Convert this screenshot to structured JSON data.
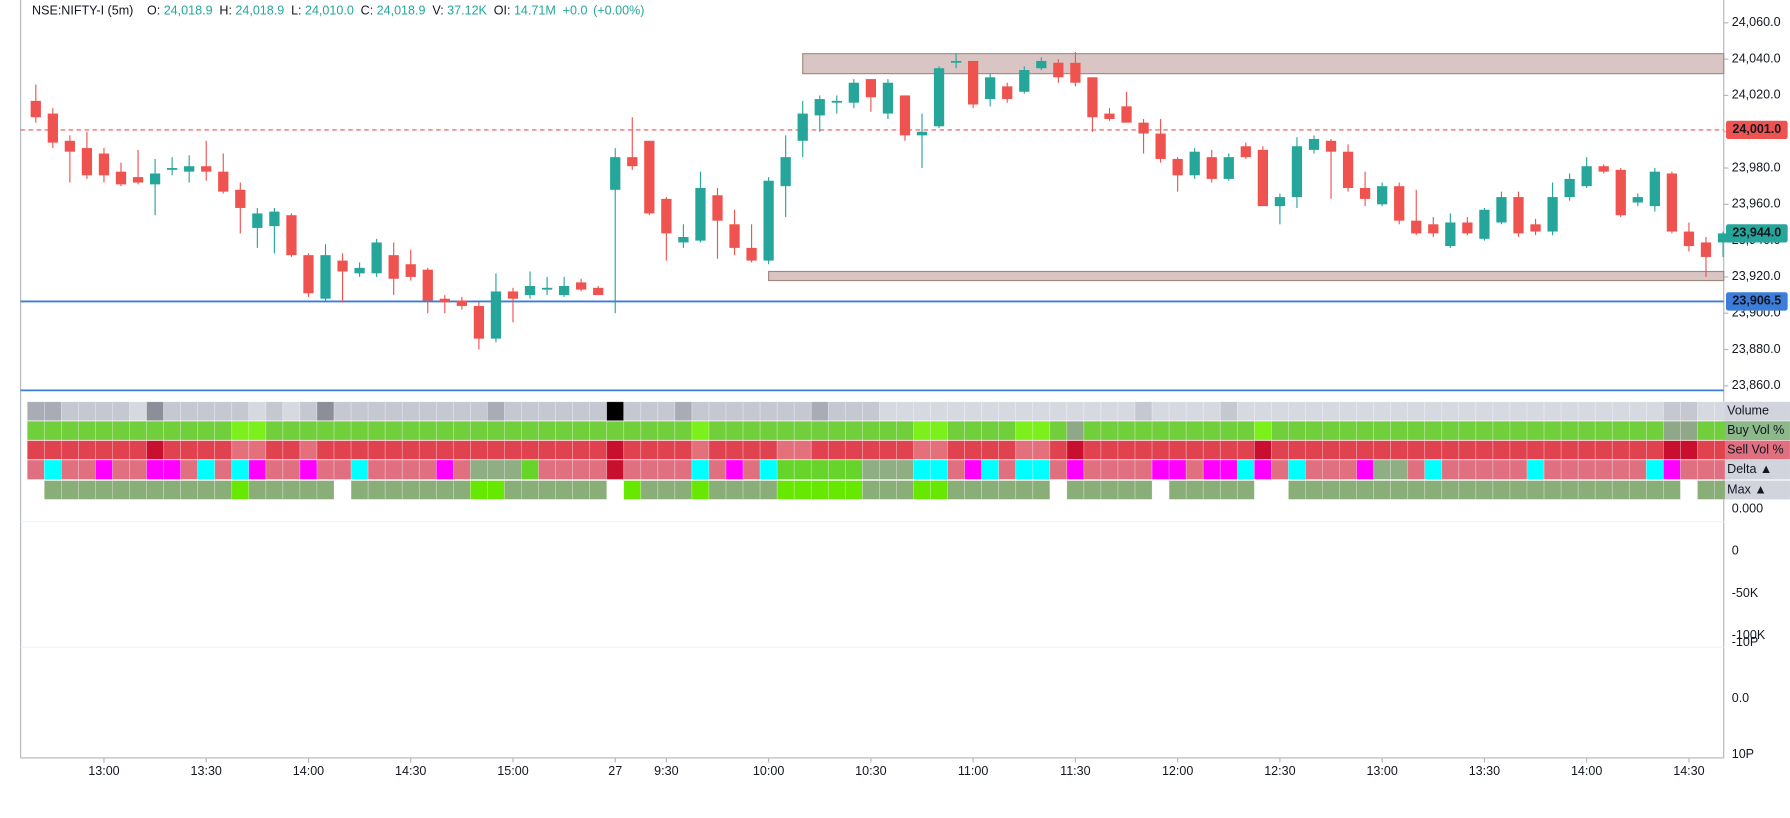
{
  "chart_data": {
    "type": "candlestick",
    "symbol": "NSE:NIFTY-I (5m)",
    "legend_items": [
      {
        "label": "O:",
        "value": "24,018.9"
      },
      {
        "label": "H:",
        "value": "24,018.9"
      },
      {
        "label": "L:",
        "value": "24,010.0"
      },
      {
        "label": "C:",
        "value": "24,018.9"
      },
      {
        "label": "V:",
        "value": "37.12K"
      },
      {
        "label": "OI:",
        "value": "14.71M"
      }
    ],
    "change": "+0.0",
    "change_percent": "(+0.00%)",
    "up_color": "#26a69a",
    "down_color": "#ef5350",
    "ylim": [
      23860,
      24060
    ],
    "yticks": [
      {
        "value": 24060,
        "label": "24,060.0"
      },
      {
        "value": 24040,
        "label": "24,040.0"
      },
      {
        "value": 24020,
        "label": "24,020.0"
      },
      {
        "value": 24000,
        "label": "24,000.0"
      },
      {
        "value": 23980,
        "label": "23,980.0"
      },
      {
        "value": 23960,
        "label": "23,960.0"
      },
      {
        "value": 23940,
        "label": "23,940.0"
      },
      {
        "value": 23920,
        "label": "23,920.0"
      },
      {
        "value": 23900,
        "label": "23,900.0"
      },
      {
        "value": 23880,
        "label": "23,880.0"
      },
      {
        "value": 23860,
        "label": "23,860.0"
      }
    ],
    "xticks": [
      {
        "value": 4,
        "label": "13:00"
      },
      {
        "value": 10,
        "label": "13:30"
      },
      {
        "value": 16,
        "label": "14:00"
      },
      {
        "value": 22,
        "label": "14:30"
      },
      {
        "value": 28,
        "label": "15:00"
      },
      {
        "value": 34,
        "label": "27"
      },
      {
        "value": 37,
        "label": "9:30"
      },
      {
        "value": 43,
        "label": "10:00"
      },
      {
        "value": 49,
        "label": "10:30"
      },
      {
        "value": 55,
        "label": "11:00"
      },
      {
        "value": 61,
        "label": "11:30"
      },
      {
        "value": 67,
        "label": "12:00"
      },
      {
        "value": 73,
        "label": "12:30"
      },
      {
        "value": 79,
        "label": "13:00"
      },
      {
        "value": 85,
        "label": "13:30"
      },
      {
        "value": 91,
        "label": "14:00"
      },
      {
        "value": 97,
        "label": "14:30"
      }
    ],
    "open": [
      24017,
      24010,
      23995,
      23991,
      23988,
      23978,
      23975,
      23971,
      23979,
      23978,
      23981,
      23978,
      23968,
      23947,
      23948,
      23954,
      23932,
      23908,
      23929,
      23922,
      23922,
      23932,
      23927,
      23924,
      23908,
      23907,
      23904,
      23886,
      23912,
      23910,
      23913,
      23910,
      23917,
      23914,
      23968,
      23986,
      23995,
      23963,
      23939,
      23940,
      23965,
      23949,
      23936,
      23929,
      23970,
      23995,
      24009,
      24016,
      24016,
      24029,
      24010,
      24020,
      23998,
      24003,
      24038,
      24039,
      24018,
      24025,
      24022,
      24035,
      24038,
      24038,
      24030,
      24010,
      24014,
      24005,
      23999,
      23985,
      23976,
      23986,
      23974,
      23992,
      23990,
      23959,
      23964,
      23990,
      23995,
      23989,
      23969,
      23960,
      23970,
      23951,
      23949,
      23937,
      23950,
      23941,
      23950,
      23964,
      23949,
      23945,
      23964,
      23970,
      23981,
      23979,
      23961,
      23959,
      23977,
      23945,
      23939,
      23939
    ],
    "high": [
      24026,
      24013,
      23998,
      24000,
      23991,
      23983,
      23990,
      23985,
      23986,
      23987,
      23995,
      23988,
      23972,
      23958,
      23958,
      23955,
      23933,
      23938,
      23933,
      23928,
      23941,
      23939,
      23935,
      23925,
      23910,
      23909,
      23906,
      23922,
      23914,
      23923,
      23920,
      23920,
      23919,
      23915,
      23991,
      24008,
      23995,
      23964,
      23949,
      23978,
      23969,
      23957,
      23949,
      23975,
      23998,
      24017,
      24020,
      24020,
      24029,
      24029,
      24029,
      24020,
      24010,
      24036,
      24043,
      24039,
      24032,
      24027,
      24036,
      24041,
      24040,
      24044,
      24030,
      24013,
      24022,
      24007,
      24007,
      23986,
      23991,
      23990,
      23988,
      23994,
      23992,
      23966,
      23997,
      23998,
      23996,
      23993,
      23978,
      23972,
      23972,
      23968,
      23953,
      23955,
      23953,
      23958,
      23967,
      23967,
      23952,
      23972,
      23977,
      23986,
      23982,
      23980,
      23966,
      23980,
      23978,
      23950,
      23942,
      23945
    ],
    "low": [
      24005,
      23991,
      23972,
      23974,
      23972,
      23970,
      23971,
      23954,
      23976,
      23972,
      23973,
      23966,
      23944,
      23936,
      23933,
      23931,
      23909,
      23907,
      23906,
      23920,
      23920,
      23910,
      23918,
      23900,
      23900,
      23902,
      23880,
      23884,
      23895,
      23908,
      23910,
      23909,
      23912,
      23910,
      23900,
      23979,
      23954,
      23929,
      23936,
      23939,
      23930,
      23932,
      23928,
      23927,
      23953,
      23986,
      24000,
      24010,
      24013,
      24011,
      24007,
      23995,
      23980,
      24002,
      24035,
      24013,
      24014,
      24016,
      24021,
      24034,
      24027,
      24025,
      24000,
      24006,
      24005,
      23988,
      23983,
      23967,
      23974,
      23972,
      23973,
      23985,
      23959,
      23949,
      23958,
      23988,
      23963,
      23967,
      23959,
      23959,
      23949,
      23943,
      23942,
      23936,
      23943,
      23940,
      23949,
      23942,
      23943,
      23943,
      23962,
      23969,
      23977,
      23953,
      23959,
      23956,
      23944,
      23934,
      23920,
      23931
    ],
    "close": [
      24008,
      23994,
      23989,
      23976,
      23976,
      23971,
      23972,
      23977,
      23980,
      23981,
      23978,
      23967,
      23958,
      23955,
      23956,
      23932,
      23911,
      23932,
      23923,
      23925,
      23939,
      23919,
      23920,
      23907,
      23906,
      23904,
      23886,
      23912,
      23908,
      23915,
      23914,
      23915,
      23913,
      23910,
      23986,
      23981,
      23955,
      23944,
      23942,
      23969,
      23951,
      23936,
      23929,
      23973,
      23986,
      24010,
      24018,
      24017,
      24027,
      24019,
      24027,
      23998,
      24000,
      24035,
      24039,
      24015,
      24030,
      24018,
      24034,
      24039,
      24030,
      24027,
      24008,
      24007,
      24005,
      23999,
      23985,
      23976,
      23989,
      23974,
      23986,
      23986,
      23959,
      23964,
      23992,
      23996,
      23989,
      23969,
      23963,
      23970,
      23951,
      23944,
      23944,
      23950,
      23944,
      23957,
      23964,
      23944,
      23945,
      23964,
      23974,
      23981,
      23978,
      23954,
      23964,
      23978,
      23945,
      23937,
      23931,
      23944
    ],
    "zones": [
      {
        "from": 45,
        "top": 24043,
        "bottom": 24032,
        "fill": "#d9c6c4",
        "stroke": "#a1887f"
      },
      {
        "from": 43,
        "top": 23923,
        "bottom": 23918,
        "fill": "#d9c6c4",
        "stroke": "#a1887f"
      }
    ],
    "levels": [
      {
        "value": 24001.0,
        "label": "24,001.0",
        "color": "#ef5350",
        "dashed": true
      },
      {
        "value": 23906.5,
        "label": "23,906.5",
        "color": "#3b7dd8",
        "dashed": false
      }
    ],
    "last_price": {
      "value": 23944.0,
      "label": "23,944.0",
      "color": "#26a69a"
    },
    "indicator_axis_labels": [
      "0.000",
      "0",
      "-50K",
      "-100K",
      "-10P",
      "0.0",
      "10P"
    ],
    "heatmap": [
      {
        "name": "Volume",
        "label_bg": "#d1d4dc",
        "colors": [
          "#a9acb5",
          "#a9acb5",
          "#c5c8d0",
          "#c5c8d0",
          "#c5c8d0",
          "#c5c8d0",
          "#d6d9e0",
          "#8c8f98",
          "#c5c8d0",
          "#c5c8d0",
          "#c5c8d0",
          "#c5c8d0",
          "#c5c8d0",
          "#d6d9e0",
          "#c5c8d0",
          "#d6d9e0",
          "#c5c8d0",
          "#8c8f98",
          "#c5c8d0",
          "#c5c8d0",
          "#c5c8d0",
          "#c5c8d0",
          "#c5c8d0",
          "#c5c8d0",
          "#c5c8d0",
          "#c5c8d0",
          "#c5c8d0",
          "#a9acb5",
          "#c5c8d0",
          "#c5c8d0",
          "#c5c8d0",
          "#c5c8d0",
          "#c5c8d0",
          "#c5c8d0",
          "#000000",
          "#c5c8d0",
          "#c5c8d0",
          "#c5c8d0",
          "#a9acb5",
          "#c5c8d0",
          "#c5c8d0",
          "#c5c8d0",
          "#c5c8d0",
          "#c5c8d0",
          "#c5c8d0",
          "#c5c8d0",
          "#a9acb5",
          "#c5c8d0",
          "#c5c8d0",
          "#c5c8d0",
          "#d6d9e0",
          "#d6d9e0",
          "#d6d9e0",
          "#d6d9e0",
          "#d6d9e0",
          "#d6d9e0",
          "#d6d9e0",
          "#d6d9e0",
          "#d6d9e0",
          "#d6d9e0",
          "#d6d9e0",
          "#d6d9e0",
          "#d6d9e0",
          "#d6d9e0",
          "#d6d9e0",
          "#c5c8d0",
          "#d6d9e0",
          "#d6d9e0",
          "#d6d9e0",
          "#d6d9e0",
          "#c5c8d0",
          "#d6d9e0",
          "#d6d9e0",
          "#d6d9e0",
          "#d6d9e0",
          "#d6d9e0",
          "#d6d9e0",
          "#d6d9e0",
          "#d6d9e0",
          "#d6d9e0",
          "#d6d9e0",
          "#d6d9e0",
          "#d6d9e0",
          "#d6d9e0",
          "#d6d9e0",
          "#d6d9e0",
          "#d6d9e0",
          "#d6d9e0",
          "#d6d9e0",
          "#d6d9e0",
          "#d6d9e0",
          "#d6d9e0",
          "#d6d9e0",
          "#d6d9e0",
          "#d6d9e0",
          "#d6d9e0",
          "#c5c8d0",
          "#c5c8d0",
          "#d6d9e0",
          "#d6d9e0"
        ]
      },
      {
        "name": "Buy Vol %",
        "label_bg": "#8db88a",
        "colors": [
          "#72cf3c",
          "#72cf3c",
          "#72cf3c",
          "#72cf3c",
          "#72cf3c",
          "#72cf3c",
          "#72cf3c",
          "#72cf3c",
          "#72cf3c",
          "#72cf3c",
          "#72cf3c",
          "#72cf3c",
          "#7cf01a",
          "#7cf01a",
          "#72cf3c",
          "#72cf3c",
          "#72cf3c",
          "#72cf3c",
          "#72cf3c",
          "#72cf3c",
          "#72cf3c",
          "#72cf3c",
          "#72cf3c",
          "#72cf3c",
          "#72cf3c",
          "#72cf3c",
          "#72cf3c",
          "#72cf3c",
          "#72cf3c",
          "#72cf3c",
          "#72cf3c",
          "#72cf3c",
          "#72cf3c",
          "#72cf3c",
          "#72cf3c",
          "#72cf3c",
          "#72cf3c",
          "#72cf3c",
          "#72cf3c",
          "#7cf01a",
          "#72cf3c",
          "#72cf3c",
          "#72cf3c",
          "#72cf3c",
          "#72cf3c",
          "#72cf3c",
          "#72cf3c",
          "#72cf3c",
          "#72cf3c",
          "#72cf3c",
          "#72cf3c",
          "#72cf3c",
          "#7cf01a",
          "#7cf01a",
          "#72cf3c",
          "#72cf3c",
          "#72cf3c",
          "#72cf3c",
          "#7cf01a",
          "#7cf01a",
          "#72cf3c",
          "#8fa888",
          "#72cf3c",
          "#72cf3c",
          "#72cf3c",
          "#72cf3c",
          "#72cf3c",
          "#72cf3c",
          "#72cf3c",
          "#72cf3c",
          "#72cf3c",
          "#72cf3c",
          "#7cf01a",
          "#72cf3c",
          "#72cf3c",
          "#72cf3c",
          "#72cf3c",
          "#72cf3c",
          "#72cf3c",
          "#72cf3c",
          "#72cf3c",
          "#72cf3c",
          "#72cf3c",
          "#72cf3c",
          "#72cf3c",
          "#72cf3c",
          "#72cf3c",
          "#72cf3c",
          "#72cf3c",
          "#72cf3c",
          "#72cf3c",
          "#72cf3c",
          "#72cf3c",
          "#72cf3c",
          "#72cf3c",
          "#72cf3c",
          "#8fa888",
          "#8fa888",
          "#72cf3c",
          "#72cf3c"
        ]
      },
      {
        "name": "Sell Vol %",
        "label_bg": "#e07080",
        "colors": [
          "#e0424f",
          "#e0424f",
          "#e0424f",
          "#e0424f",
          "#e0424f",
          "#e0424f",
          "#e0424f",
          "#c8102e",
          "#e0424f",
          "#e0424f",
          "#e0424f",
          "#e0424f",
          "#e4707c",
          "#e4707c",
          "#e0424f",
          "#e0424f",
          "#e4707c",
          "#e0424f",
          "#e0424f",
          "#e0424f",
          "#e0424f",
          "#e0424f",
          "#e0424f",
          "#e0424f",
          "#e0424f",
          "#e0424f",
          "#e0424f",
          "#e0424f",
          "#e0424f",
          "#e0424f",
          "#e0424f",
          "#e0424f",
          "#e0424f",
          "#e0424f",
          "#c8102e",
          "#e0424f",
          "#e0424f",
          "#e0424f",
          "#e0424f",
          "#e4707c",
          "#e0424f",
          "#e0424f",
          "#e0424f",
          "#e0424f",
          "#e4707c",
          "#e4707c",
          "#e0424f",
          "#e0424f",
          "#e0424f",
          "#e0424f",
          "#e0424f",
          "#e0424f",
          "#e4707c",
          "#e4707c",
          "#e0424f",
          "#e0424f",
          "#e0424f",
          "#e0424f",
          "#e4707c",
          "#e4707c",
          "#e0424f",
          "#c8102e",
          "#e0424f",
          "#e0424f",
          "#e0424f",
          "#e0424f",
          "#e0424f",
          "#e0424f",
          "#e0424f",
          "#e0424f",
          "#e0424f",
          "#e0424f",
          "#c8102e",
          "#e0424f",
          "#e0424f",
          "#e0424f",
          "#e0424f",
          "#e0424f",
          "#e0424f",
          "#e0424f",
          "#e0424f",
          "#e0424f",
          "#e0424f",
          "#e0424f",
          "#e0424f",
          "#e0424f",
          "#e0424f",
          "#e0424f",
          "#e0424f",
          "#e0424f",
          "#e0424f",
          "#e0424f",
          "#e0424f",
          "#e0424f",
          "#e0424f",
          "#e0424f",
          "#c8102e",
          "#c8102e",
          "#e0424f",
          "#e0424f"
        ]
      },
      {
        "name": "Delta ▲",
        "label_bg": "#d1d4dc",
        "colors": [
          "#e07080",
          "#00ffff",
          "#e07080",
          "#e07080",
          "#ff00ff",
          "#e07080",
          "#e07080",
          "#ff00ff",
          "#ff00ff",
          "#e07080",
          "#00ffff",
          "#e07080",
          "#00ffff",
          "#ff00ff",
          "#e07080",
          "#e07080",
          "#ff00ff",
          "#e07080",
          "#e07080",
          "#00ffff",
          "#e07080",
          "#e07080",
          "#e07080",
          "#e07080",
          "#ff00ff",
          "#e07080",
          "#8fae84",
          "#8fae84",
          "#8fae84",
          "#66d42a",
          "#e07080",
          "#e07080",
          "#e07080",
          "#e07080",
          "#c8102e",
          "#e07080",
          "#e07080",
          "#e07080",
          "#e07080",
          "#00ffff",
          "#e07080",
          "#ff00ff",
          "#e07080",
          "#00ffff",
          "#66d42a",
          "#66d42a",
          "#66d42a",
          "#66d42a",
          "#66d42a",
          "#8fae84",
          "#8fae84",
          "#8fae84",
          "#00ffff",
          "#00ffff",
          "#e07080",
          "#ff00ff",
          "#00ffff",
          "#e07080",
          "#00ffff",
          "#00ffff",
          "#e07080",
          "#ff00ff",
          "#e07080",
          "#e07080",
          "#e07080",
          "#e07080",
          "#ff00ff",
          "#ff00ff",
          "#e07080",
          "#ff00ff",
          "#ff00ff",
          "#00ffff",
          "#ff00ff",
          "#e07080",
          "#00ffff",
          "#e07080",
          "#e07080",
          "#e07080",
          "#ff00ff",
          "#8fae84",
          "#8fae84",
          "#e07080",
          "#00ffff",
          "#e07080",
          "#e07080",
          "#e07080",
          "#e07080",
          "#e07080",
          "#00ffff",
          "#e07080",
          "#e07080",
          "#e07080",
          "#e07080",
          "#e07080",
          "#e07080",
          "#00ffff",
          "#ff00ff",
          "#e07080",
          "#e07080",
          "#e07080"
        ]
      },
      {
        "name": "Max ▲",
        "label_bg": "#d1d4dc",
        "colors": [
          null,
          "#8aae78",
          "#8aae78",
          "#8aae78",
          "#8aae78",
          "#8aae78",
          "#8aae78",
          "#8aae78",
          "#8aae78",
          "#8aae78",
          "#8aae78",
          "#8aae78",
          "#66e800",
          "#8aae78",
          "#8aae78",
          "#8aae78",
          "#8aae78",
          "#8aae78",
          null,
          "#8aae78",
          "#8aae78",
          "#8aae78",
          "#8aae78",
          "#8aae78",
          "#8aae78",
          "#8aae78",
          "#66e800",
          "#66e800",
          "#8aae78",
          "#8aae78",
          "#8aae78",
          "#8aae78",
          "#8aae78",
          "#8aae78",
          null,
          "#66e800",
          "#8aae78",
          "#8aae78",
          "#8aae78",
          "#66e800",
          "#8aae78",
          "#8aae78",
          "#8aae78",
          "#8aae78",
          "#66e800",
          "#66e800",
          "#66e800",
          "#66e800",
          "#66e800",
          "#8aae78",
          "#8aae78",
          "#8aae78",
          "#66e800",
          "#66e800",
          "#8aae78",
          "#8aae78",
          "#8aae78",
          "#8aae78",
          "#8aae78",
          "#8aae78",
          null,
          "#8aae78",
          "#8aae78",
          "#8aae78",
          "#8aae78",
          "#8aae78",
          null,
          "#8aae78",
          "#8aae78",
          "#8aae78",
          "#8aae78",
          "#8aae78",
          null,
          null,
          "#8aae78",
          "#8aae78",
          "#8aae78",
          "#8aae78",
          "#8aae78",
          "#8aae78",
          "#8aae78",
          "#8aae78",
          "#8aae78",
          "#8aae78",
          "#8aae78",
          "#8aae78",
          "#8aae78",
          "#8aae78",
          "#8aae78",
          "#8aae78",
          "#8aae78",
          "#8aae78",
          "#8aae78",
          "#8aae78",
          "#8aae78",
          "#8aae78",
          "#8aae78",
          null,
          "#8aae78",
          "#8aae78"
        ]
      }
    ]
  }
}
